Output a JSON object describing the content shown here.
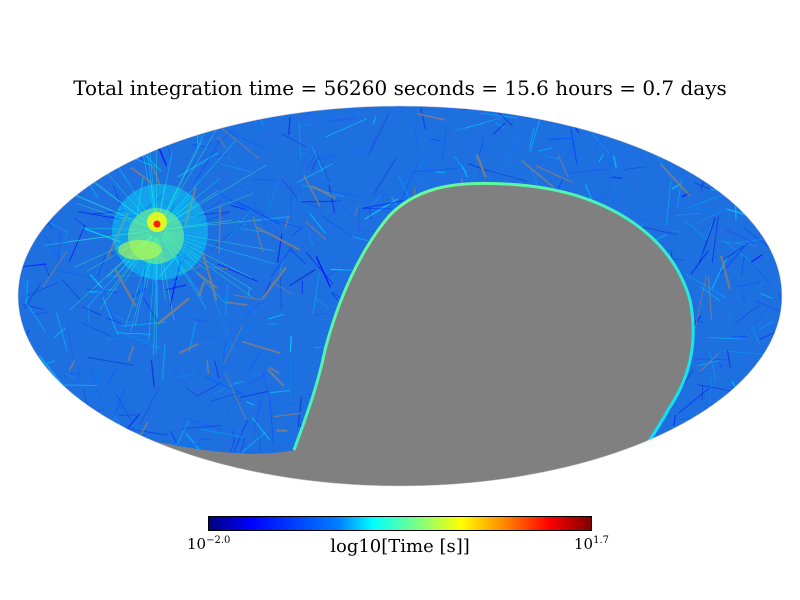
{
  "chart_data": {
    "type": "heatmap",
    "title": "Total integration time = 56260 seconds = 15.6 hours = 0.7 days",
    "projection": "mollweide",
    "colormap": "jet",
    "colorbar": {
      "label": "log10[Time [s]]",
      "min_base": "10",
      "min_exp": "−2.0",
      "max_base": "10",
      "max_exp": "1.7",
      "min": -2.0,
      "max": 1.7,
      "placement": "bottom"
    },
    "unobserved_color": "#808080",
    "grid": false
  }
}
